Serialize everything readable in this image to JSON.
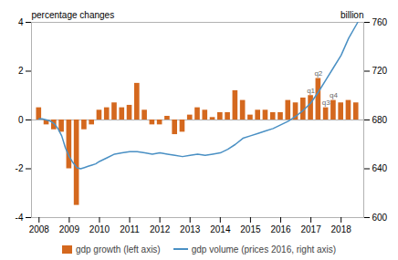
{
  "chart_data": {
    "type": "bar",
    "ylabel": "percentage changes",
    "y2label": "billion",
    "xlim": [
      2007.75,
      2018.75
    ],
    "xticks": [
      2008,
      2009,
      2010,
      2011,
      2012,
      2013,
      2014,
      2015,
      2016,
      2017,
      2018
    ],
    "ylim": [
      -4,
      4
    ],
    "yticks": [
      -4,
      -2,
      0,
      2,
      4
    ],
    "y2lim": [
      600,
      760
    ],
    "y2ticks": [
      600,
      640,
      680,
      720,
      760
    ],
    "legend": "bottom",
    "series": [
      {
        "name": "gdp growth (left axis)",
        "type": "bar",
        "color": "#d4681e",
        "x": [
          2008.0,
          2008.25,
          2008.5,
          2008.75,
          2009.0,
          2009.25,
          2009.5,
          2009.75,
          2010.0,
          2010.25,
          2010.5,
          2010.75,
          2011.0,
          2011.25,
          2011.5,
          2011.75,
          2012.0,
          2012.25,
          2012.5,
          2012.75,
          2013.0,
          2013.25,
          2013.5,
          2013.75,
          2014.0,
          2014.25,
          2014.5,
          2014.75,
          2015.0,
          2015.25,
          2015.5,
          2015.75,
          2016.0,
          2016.25,
          2016.5,
          2016.75,
          2017.0,
          2017.25,
          2017.5,
          2017.75,
          2018.0,
          2018.25,
          2018.5
        ],
        "values": [
          0.5,
          -0.2,
          -0.4,
          -0.5,
          -2.0,
          -3.5,
          -0.4,
          -0.2,
          0.4,
          0.5,
          0.7,
          0.5,
          0.6,
          1.5,
          0.4,
          -0.2,
          -0.2,
          0.15,
          -0.6,
          -0.5,
          0.2,
          0.5,
          0.4,
          0.1,
          0.3,
          0.3,
          1.2,
          0.8,
          0.2,
          0.4,
          0.4,
          0.3,
          0.3,
          0.8,
          0.7,
          0.9,
          1.0,
          1.7,
          0.5,
          0.8,
          0.7,
          0.8,
          0.7
        ]
      },
      {
        "name": "gdp volume (prices 2016, right axis)",
        "type": "line",
        "color": "#4a90c4",
        "axis": "y2",
        "x": [
          2008.0,
          2008.1,
          2008.25,
          2008.375,
          2008.5,
          2008.625,
          2008.75,
          2008.875,
          2009.0,
          2009.125,
          2009.25,
          2009.375,
          2009.5,
          2009.625,
          2009.75,
          2009.875,
          2010.0,
          2010.25,
          2010.5,
          2010.75,
          2011.0,
          2011.25,
          2011.5,
          2011.75,
          2012.0,
          2012.25,
          2012.5,
          2012.75,
          2013.0,
          2013.25,
          2013.5,
          2013.75,
          2014.0,
          2014.25,
          2014.5,
          2014.75,
          2015.0,
          2015.25,
          2015.5,
          2015.75,
          2016.0,
          2016.25,
          2016.5,
          2016.75,
          2017.0,
          2017.25,
          2017.5,
          2017.75,
          2018.0,
          2018.25,
          2018.55
        ],
        "values": [
          681,
          681,
          680,
          679,
          677,
          673,
          667,
          657,
          650,
          645,
          641,
          640,
          641,
          642,
          643,
          644,
          646,
          649,
          652,
          653,
          654,
          654,
          653,
          652,
          653,
          652,
          651,
          650,
          651,
          652,
          651,
          652,
          653,
          656,
          660,
          665,
          667,
          669,
          671,
          673,
          676,
          679,
          683,
          688,
          694,
          703,
          713,
          723,
          733,
          747,
          760
        ]
      }
    ],
    "annotations": [
      {
        "x": 2017.0,
        "y": 1.0,
        "text": "q1"
      },
      {
        "x": 2017.25,
        "y": 1.7,
        "text": "q2"
      },
      {
        "x": 2017.5,
        "y": 0.5,
        "text": "q3"
      },
      {
        "x": 2017.75,
        "y": 0.8,
        "text": "q4"
      }
    ]
  }
}
